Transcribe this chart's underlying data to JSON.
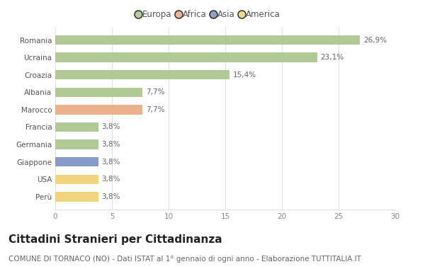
{
  "categories": [
    "Romania",
    "Ucraina",
    "Croazia",
    "Albania",
    "Marocco",
    "Francia",
    "Germania",
    "Giappone",
    "USA",
    "Perù"
  ],
  "values": [
    26.9,
    23.1,
    15.4,
    7.7,
    7.7,
    3.8,
    3.8,
    3.8,
    3.8,
    3.8
  ],
  "colors": [
    "#a8c48a",
    "#a8c48a",
    "#a8c48a",
    "#a8c48a",
    "#e8aa80",
    "#a8c48a",
    "#a8c48a",
    "#7b8fc0",
    "#f0d070",
    "#f0d070"
  ],
  "labels": [
    "26,9%",
    "23,1%",
    "15,4%",
    "7,7%",
    "7,7%",
    "3,8%",
    "3,8%",
    "3,8%",
    "3,8%",
    "3,8%"
  ],
  "legend": {
    "Europa": "#a8c48a",
    "Africa": "#e8aa80",
    "Asia": "#7b8fc0",
    "America": "#f0d070"
  },
  "xlim": [
    0,
    30
  ],
  "xticks": [
    0,
    5,
    10,
    15,
    20,
    25,
    30
  ],
  "title": "Cittadini Stranieri per Cittadinanza",
  "subtitle": "COMUNE DI TORNACO (NO) - Dati ISTAT al 1° gennaio di ogni anno - Elaborazione TUTTITALIA.IT",
  "bg_color": "#ffffff",
  "bar_height": 0.55,
  "title_fontsize": 11,
  "subtitle_fontsize": 7.5,
  "label_fontsize": 7.5,
  "tick_fontsize": 7.5,
  "grid_color": "#e0e0e0"
}
